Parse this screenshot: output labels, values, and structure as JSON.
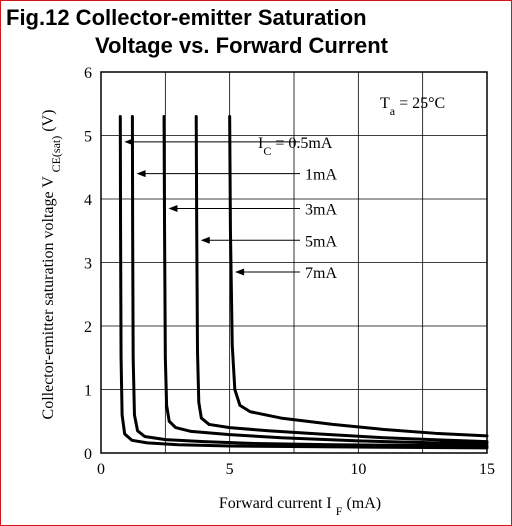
{
  "title_line1": "Fig.12 Collector-emitter Saturation",
  "title_line2": "Voltage vs. Forward Current",
  "chart_data": {
    "type": "line",
    "title": "Fig.12 Collector-emitter Saturation Voltage vs. Forward Current",
    "xlabel": {
      "main": "Forward current I",
      "sub": "F",
      "unit": "(mA)"
    },
    "ylabel": {
      "main": "Collector-emitter saturation voltage V",
      "sub": "CE(sat)",
      "unit": "(V)"
    },
    "xlim": [
      0,
      15
    ],
    "ylim": [
      0,
      6
    ],
    "xticks": [
      0,
      5,
      10,
      15
    ],
    "yticks": [
      0,
      1,
      2,
      3,
      4,
      5,
      6
    ],
    "x_minor_step": 2.5,
    "grid": true,
    "condition": {
      "main": "T",
      "sub": "a",
      "rest": " = 25°C"
    },
    "series": [
      {
        "name": "I",
        "name_sub": "C",
        "name_rest": " = 0.5mA",
        "label_y": 4.9,
        "x": [
          0.75,
          0.76,
          0.78,
          0.82,
          0.92,
          1.2,
          1.8,
          3,
          5,
          8,
          11,
          15
        ],
        "y": [
          5.3,
          3.5,
          1.5,
          0.6,
          0.3,
          0.2,
          0.16,
          0.13,
          0.11,
          0.1,
          0.09,
          0.08
        ]
      },
      {
        "name": "1mA",
        "label_y": 4.4,
        "x": [
          1.22,
          1.23,
          1.25,
          1.3,
          1.42,
          1.7,
          2.5,
          4,
          6,
          9,
          12,
          15
        ],
        "y": [
          5.3,
          3.5,
          1.5,
          0.6,
          0.35,
          0.26,
          0.21,
          0.18,
          0.15,
          0.13,
          0.12,
          0.11
        ]
      },
      {
        "name": "3mA",
        "label_y": 3.85,
        "x": [
          2.45,
          2.47,
          2.5,
          2.55,
          2.65,
          2.9,
          3.5,
          5,
          7,
          10,
          13,
          15
        ],
        "y": [
          5.3,
          3.5,
          1.5,
          0.75,
          0.5,
          0.4,
          0.34,
          0.29,
          0.24,
          0.19,
          0.16,
          0.15
        ]
      },
      {
        "name": "5mA",
        "label_y": 3.35,
        "x": [
          3.7,
          3.72,
          3.75,
          3.8,
          3.9,
          4.2,
          5,
          6.5,
          8.5,
          11,
          13.5,
          15
        ],
        "y": [
          5.3,
          3.5,
          1.6,
          0.8,
          0.55,
          0.45,
          0.4,
          0.35,
          0.3,
          0.24,
          0.2,
          0.18
        ]
      },
      {
        "name": "7mA",
        "label_y": 2.85,
        "x": [
          5.0,
          5.03,
          5.1,
          5.2,
          5.4,
          5.8,
          7,
          9,
          11,
          13,
          15
        ],
        "y": [
          5.3,
          3.5,
          1.7,
          1.0,
          0.75,
          0.65,
          0.55,
          0.45,
          0.37,
          0.31,
          0.27
        ]
      }
    ]
  }
}
